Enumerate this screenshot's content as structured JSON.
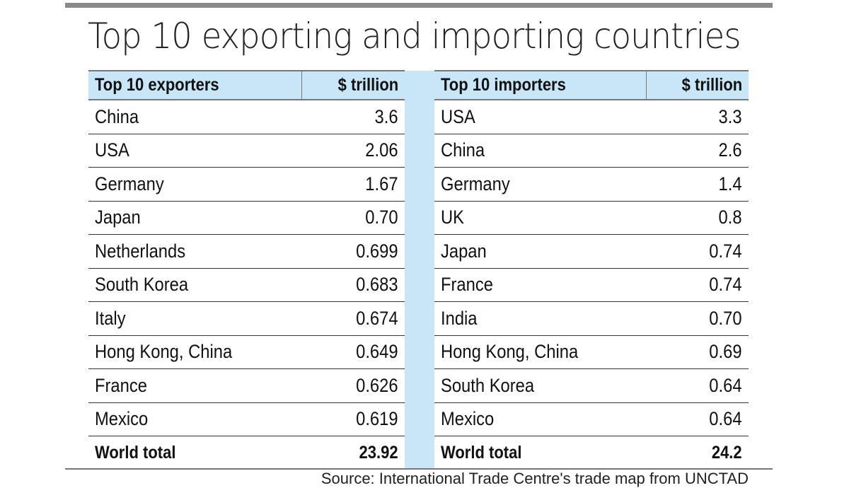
{
  "title": "Top 10 exporting and importing countries",
  "exporters": {
    "header": {
      "label": "Top 10 exporters",
      "unit": "$ trillion"
    },
    "rows": [
      {
        "country": "China",
        "value": "3.6"
      },
      {
        "country": "USA",
        "value": "2.06"
      },
      {
        "country": "Germany",
        "value": "1.67"
      },
      {
        "country": "Japan",
        "value": "0.70"
      },
      {
        "country": "Netherlands",
        "value": "0.699"
      },
      {
        "country": "South Korea",
        "value": "0.683"
      },
      {
        "country": "Italy",
        "value": "0.674"
      },
      {
        "country": "Hong Kong, China",
        "value": "0.649"
      },
      {
        "country": "France",
        "value": "0.626"
      },
      {
        "country": "Mexico",
        "value": "0.619"
      }
    ],
    "total": {
      "label": "World total",
      "value": "23.92"
    }
  },
  "importers": {
    "header": {
      "label": "Top 10 importers",
      "unit": "$ trillion"
    },
    "rows": [
      {
        "country": "USA",
        "value": "3.3"
      },
      {
        "country": "China",
        "value": "2.6"
      },
      {
        "country": "Germany",
        "value": "1.4"
      },
      {
        "country": "UK",
        "value": "0.8"
      },
      {
        "country": "Japan",
        "value": "0.74"
      },
      {
        "country": "France",
        "value": "0.74"
      },
      {
        "country": "India",
        "value": "0.70"
      },
      {
        "country": "Hong Kong, China",
        "value": "0.69"
      },
      {
        "country": "South Korea",
        "value": "0.64"
      },
      {
        "country": "Mexico",
        "value": "0.64"
      }
    ],
    "total": {
      "label": "World total",
      "value": "24.2"
    }
  },
  "source": "Source: International Trade Centre's trade map from UNCTAD",
  "colors": {
    "header_bg": "#c8e6f7",
    "top_bar": "#8a8a8a"
  }
}
